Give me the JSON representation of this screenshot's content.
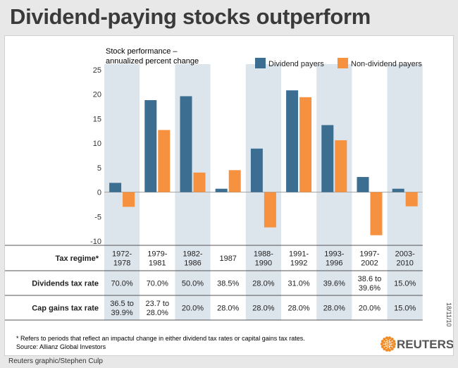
{
  "title": "Dividend-paying stocks outperform",
  "credit": "Reuters graphic/Stephen Culp",
  "date_stamp": "18/11/10",
  "footnote": "* Refers to periods that reflect an impactul change in either dividend tax rates or capital gains tax rates.",
  "source": "Source:  Allianz Global Investors",
  "logo_text": "REUTERS",
  "colors": {
    "dividend": "#3c6e91",
    "non_dividend": "#f5913f",
    "band": "#dce4ec"
  },
  "chart_data": {
    "type": "bar",
    "ylabel_line1": "Stock performance –",
    "ylabel_line2": "annualized percent change",
    "ylim": [
      -10,
      25
    ],
    "yticks": [
      25,
      20,
      15,
      10,
      5,
      0,
      -5,
      -10
    ],
    "ytick_labels": [
      "25",
      "20",
      "15",
      "10",
      "5",
      "0",
      "-5",
      "-10"
    ],
    "legend_position": "top-right",
    "categories": [
      "1972-1978",
      "1979-1981",
      "1982-1986",
      "1987",
      "1988-1990",
      "1991-1992",
      "1993-1996",
      "1997-2002",
      "2003-2010"
    ],
    "category_line1": [
      "1972-",
      "1979-",
      "1982-",
      "1987",
      "1988-",
      "1991-",
      "1993-",
      "1997-",
      "2003-"
    ],
    "category_line2": [
      "1978",
      "1981",
      "1986",
      "",
      "1990",
      "1992",
      "1996",
      "2002",
      "2010"
    ],
    "banded": [
      true,
      false,
      true,
      false,
      true,
      false,
      true,
      false,
      true
    ],
    "series": [
      {
        "name": "Dividend payers",
        "values": [
          1.9,
          18.8,
          19.6,
          0.7,
          8.9,
          20.8,
          13.7,
          3.1,
          0.7
        ]
      },
      {
        "name": "Non-dividend payers",
        "values": [
          -3.0,
          12.7,
          4.0,
          4.5,
          -7.2,
          19.4,
          10.6,
          -8.8,
          -2.9
        ]
      }
    ]
  },
  "table": {
    "rows": [
      {
        "label": "Tax regime*",
        "cells": [
          [
            "1972-",
            "1978"
          ],
          [
            "1979-",
            "1981"
          ],
          [
            "1982-",
            "1986"
          ],
          [
            "1987"
          ],
          [
            "1988-",
            "1990"
          ],
          [
            "1991-",
            "1992"
          ],
          [
            "1993-",
            "1996"
          ],
          [
            "1997-",
            "2002"
          ],
          [
            "2003-",
            "2010"
          ]
        ]
      },
      {
        "label": "Dividends tax rate",
        "cells": [
          [
            "70.0%"
          ],
          [
            "70.0%"
          ],
          [
            "50.0%"
          ],
          [
            "38.5%"
          ],
          [
            "28.0%"
          ],
          [
            "31.0%"
          ],
          [
            "39.6%"
          ],
          [
            "38.6 to",
            "39.6%"
          ],
          [
            "15.0%"
          ]
        ]
      },
      {
        "label": "Cap gains tax rate",
        "cells": [
          [
            "36.5 to",
            "39.9%"
          ],
          [
            "23.7 to",
            "28.0%"
          ],
          [
            "20.0%"
          ],
          [
            "28.0%"
          ],
          [
            "28.0%"
          ],
          [
            "28.0%"
          ],
          [
            "28.0%"
          ],
          [
            "20.0%"
          ],
          [
            "15.0%"
          ]
        ]
      }
    ]
  }
}
